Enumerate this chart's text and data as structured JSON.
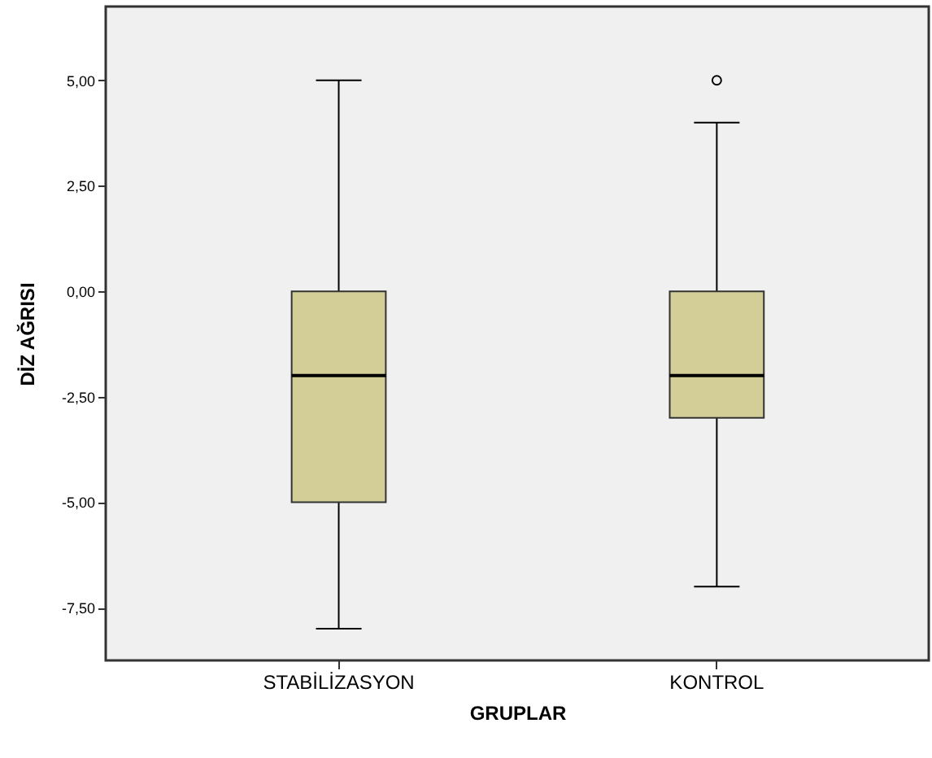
{
  "chart_data": {
    "type": "box",
    "xlabel": "GRUPLAR",
    "ylabel": "DİZ AĞRISI",
    "categories": [
      "STABİLİZASYON",
      "KONTROL"
    ],
    "series": [
      {
        "color": "#d3ce98",
        "boxes": [
          {
            "low": -8,
            "q1": -5,
            "median": -2,
            "q3": 0,
            "high": 5
          },
          {
            "low": -7,
            "q1": -3,
            "median": -2,
            "q3": 0,
            "high": 4,
            "outliers": [
              5
            ]
          }
        ]
      }
    ],
    "ylim": [
      -8.75,
      6.75
    ],
    "yticks": [
      {
        "value": -7.5,
        "label": "-7,50"
      },
      {
        "value": -5,
        "label": "-5,00"
      },
      {
        "value": -2.5,
        "label": "-2,50"
      },
      {
        "value": 0,
        "label": "0,00"
      },
      {
        "value": 2.5,
        "label": "2,50"
      },
      {
        "value": 5,
        "label": "5,00"
      }
    ]
  }
}
